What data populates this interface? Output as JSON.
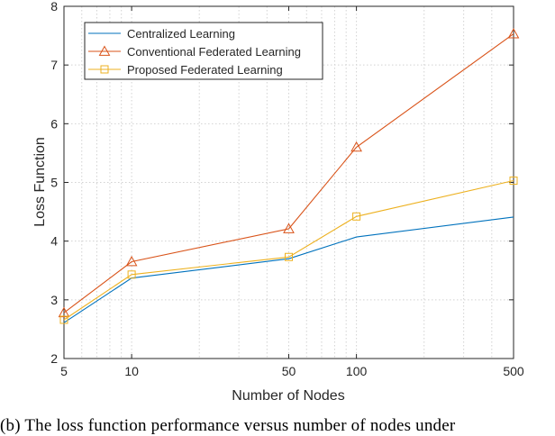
{
  "chart_data": {
    "type": "line",
    "xscale": "log",
    "x": [
      5,
      10,
      50,
      100,
      500
    ],
    "xticks": [
      5,
      10,
      50,
      100,
      500
    ],
    "xlim": [
      5,
      500
    ],
    "yticks": [
      2,
      3,
      4,
      5,
      6,
      7,
      8
    ],
    "ylim": [
      2,
      8
    ],
    "xlabel": "Number of Nodes",
    "ylabel": "Loss Function",
    "grid": true,
    "legend_position": "top-left",
    "series": [
      {
        "name": "Centralized Learning",
        "color": "#0072BD",
        "marker": "none",
        "values": [
          2.61,
          3.37,
          3.7,
          4.07,
          4.41
        ]
      },
      {
        "name": "Conventional Federated Learning",
        "color": "#D95319",
        "marker": "triangle",
        "values": [
          2.78,
          3.65,
          4.21,
          5.6,
          7.53
        ]
      },
      {
        "name": "Proposed Federated Learning",
        "color": "#EDB120",
        "marker": "square",
        "values": [
          2.66,
          3.43,
          3.73,
          4.42,
          5.03
        ]
      }
    ]
  },
  "caption": "(b) The loss function performance versus number of nodes under"
}
